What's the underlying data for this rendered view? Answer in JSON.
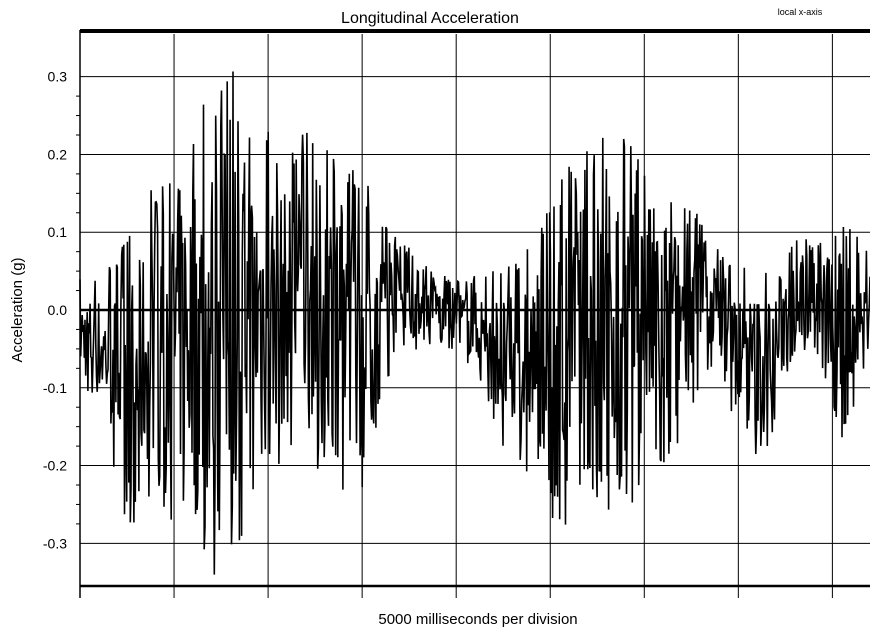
{
  "chart_data": {
    "type": "line",
    "title": "Longitudinal Acceleration",
    "annotation": "local x-axis",
    "xlabel": "5000 milliseconds per division",
    "ylabel": "Acceleration (g)",
    "ylim": [
      -0.36,
      0.36
    ],
    "yticks": [
      0.3,
      0.2,
      0.1,
      0.0,
      -0.1,
      -0.2,
      -0.3
    ],
    "ytick_labels": [
      "0.3",
      "0.2",
      "0.1",
      "0.0",
      "-0.1",
      "-0.2",
      "-0.3"
    ],
    "x_divisions": 8.4,
    "grid": true,
    "series_color": "#000000",
    "series": [
      {
        "envelope_upper": [
          0.04,
          0.05,
          0.1,
          0.18,
          0.25,
          0.3,
          0.32,
          0.25,
          0.22,
          0.24,
          0.22,
          0.18,
          0.12,
          0.08,
          0.05,
          0.04,
          0.05,
          0.06,
          0.1,
          0.18,
          0.22,
          0.24,
          0.22,
          0.18,
          0.14,
          0.08,
          0.06,
          0.06,
          0.1,
          0.1,
          0.12,
          0.08
        ],
        "envelope_lower": [
          -0.1,
          -0.16,
          -0.3,
          -0.24,
          -0.3,
          -0.35,
          -0.33,
          -0.24,
          -0.22,
          -0.2,
          -0.23,
          -0.24,
          -0.1,
          -0.06,
          -0.04,
          -0.06,
          -0.12,
          -0.22,
          -0.2,
          -0.35,
          -0.25,
          -0.27,
          -0.24,
          -0.2,
          -0.14,
          -0.06,
          -0.2,
          -0.18,
          -0.07,
          -0.06,
          -0.19,
          -0.04
        ]
      }
    ]
  }
}
